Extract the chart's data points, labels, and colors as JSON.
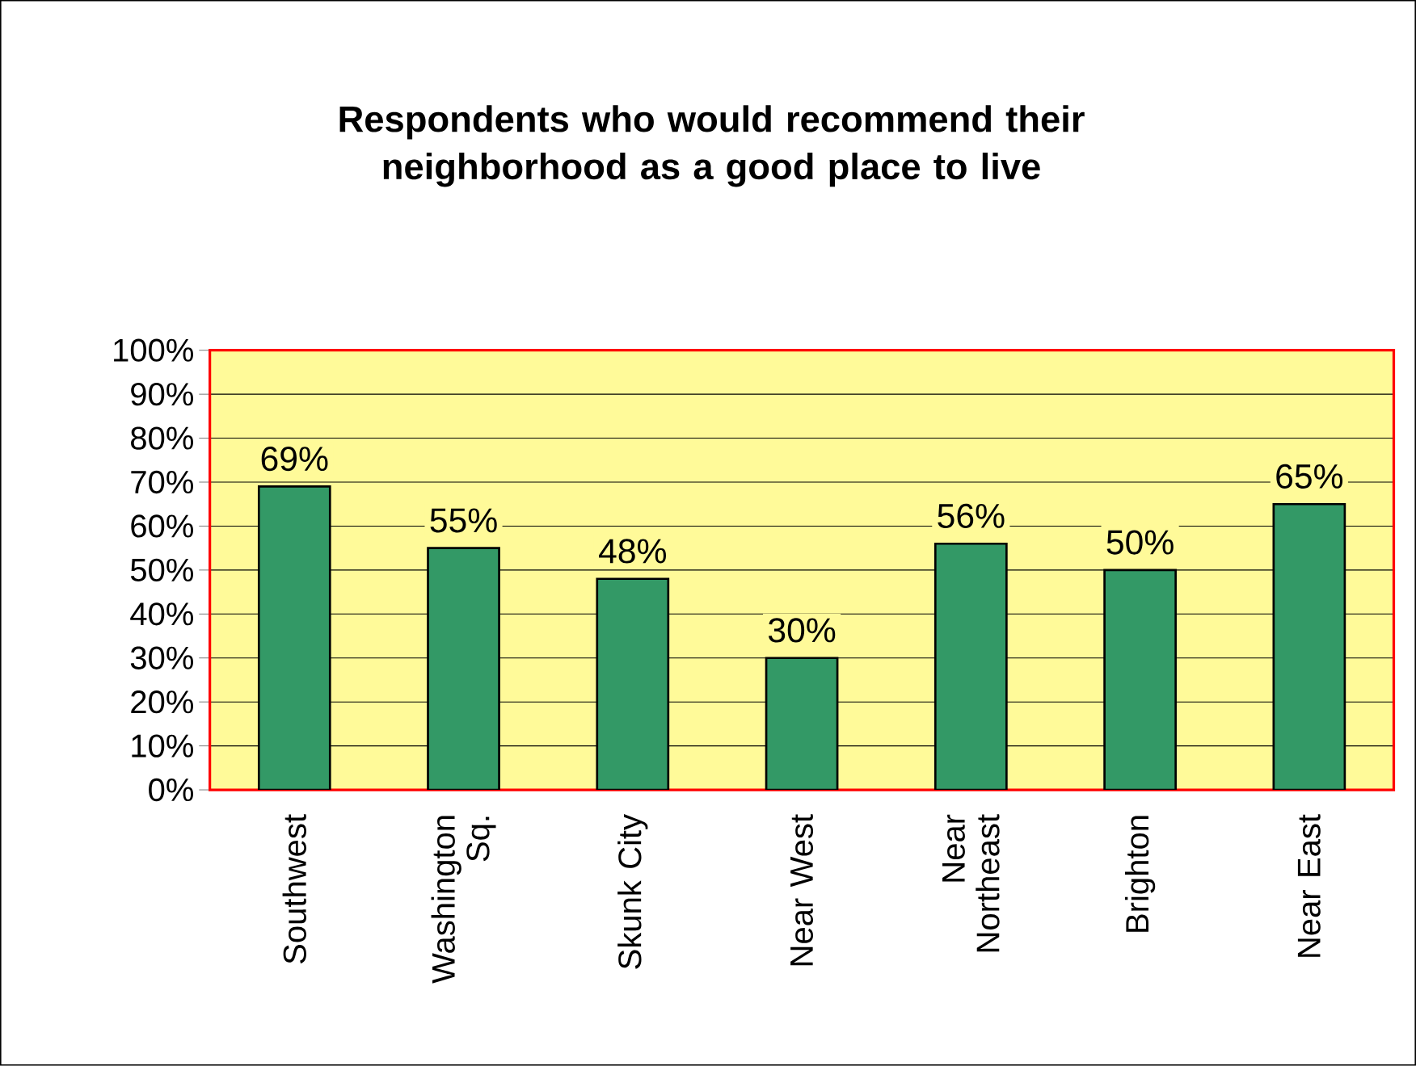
{
  "chart_data": {
    "type": "bar",
    "title": "Respondents who would recommend their neighborhood as a good place to live",
    "categories": [
      "Southwest",
      "Washington Sq.",
      "Skunk City",
      "Near West",
      "Near Northeast",
      "Brighton",
      "Near East"
    ],
    "values": [
      69,
      55,
      48,
      30,
      56,
      50,
      65
    ],
    "value_labels": [
      "69%",
      "55%",
      "48%",
      "30%",
      "56%",
      "50%",
      "65%"
    ],
    "color": "#339966",
    "ylim": [
      0,
      100
    ],
    "yticks": [
      {
        "value": 0,
        "label": "0%"
      },
      {
        "value": 10,
        "label": "10%"
      },
      {
        "value": 20,
        "label": "20%"
      },
      {
        "value": 30,
        "label": "30%"
      },
      {
        "value": 40,
        "label": "40%"
      },
      {
        "value": 50,
        "label": "50%"
      },
      {
        "value": 60,
        "label": "60%"
      },
      {
        "value": 70,
        "label": "70%"
      },
      {
        "value": 80,
        "label": "80%"
      },
      {
        "value": 90,
        "label": "90%"
      },
      {
        "value": 100,
        "label": "100%"
      }
    ],
    "grid": "y"
  }
}
